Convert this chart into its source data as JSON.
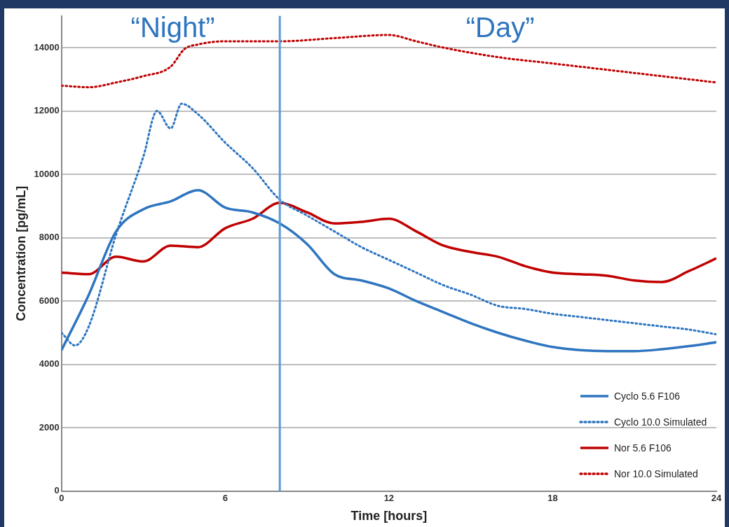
{
  "chart_data": {
    "type": "line",
    "xlabel": "Time [hours]",
    "ylabel": "Concentration [pg/mL]",
    "annotations": [
      "“Night”",
      "“Day”"
    ],
    "x": [
      0,
      1,
      2,
      3,
      4,
      5,
      6,
      7,
      8,
      9,
      10,
      11,
      12,
      13,
      14,
      15,
      16,
      17,
      18,
      19,
      20,
      21,
      22,
      23,
      24
    ],
    "series": [
      {
        "name": "Cyclo 5.6 F106",
        "color": "#2e75c0",
        "line_style": "solid",
        "values": [
          4450,
          6200,
          8200,
          8900,
          9150,
          9500,
          8950,
          8800,
          8450,
          7800,
          6850,
          6650,
          6400,
          6000,
          5650,
          5300,
          5000,
          4750,
          4550,
          4450,
          4420,
          4420,
          4480,
          4580,
          4700
        ]
      },
      {
        "name": "Cyclo 10.0 Simulated",
        "color": "#2e75c0",
        "line_style": "dotted",
        "x": [
          0,
          0.5,
          1,
          2,
          3,
          3.5,
          4,
          4.4,
          5,
          6,
          7,
          8,
          9,
          10,
          11,
          12,
          13,
          14,
          15,
          16,
          17,
          18,
          19,
          20,
          21,
          22,
          23,
          24
        ],
        "values": [
          5000,
          4600,
          5200,
          8100,
          10560,
          12000,
          11450,
          12230,
          11900,
          11000,
          10200,
          9200,
          8700,
          8200,
          7700,
          7300,
          6900,
          6500,
          6200,
          5850,
          5750,
          5600,
          5500,
          5400,
          5300,
          5200,
          5100,
          4950
        ]
      },
      {
        "name": "Nor 5.6 F106",
        "color": "#c00000",
        "line_style": "solid",
        "values": [
          6900,
          6850,
          7400,
          7250,
          7750,
          7700,
          8300,
          8600,
          9100,
          8800,
          8450,
          8500,
          8600,
          8200,
          7750,
          7550,
          7400,
          7100,
          6900,
          6850,
          6800,
          6650,
          6600,
          6950,
          7350
        ]
      },
      {
        "name": "Nor 10.0 Simulated",
        "color": "#c00000",
        "line_style": "dotted",
        "x": [
          0,
          1,
          2,
          3,
          4,
          4.5,
          5,
          6,
          8,
          10,
          12,
          13,
          14,
          16,
          18,
          20,
          22,
          24
        ],
        "values": [
          12800,
          12750,
          12900,
          13100,
          13400,
          13950,
          14100,
          14200,
          14200,
          14300,
          14400,
          14200,
          14000,
          13700,
          13500,
          13300,
          13100,
          12900
        ]
      }
    ],
    "xlim": [
      0,
      24
    ],
    "xticks": [
      0,
      6,
      12,
      18,
      24
    ],
    "ylim": [
      0,
      15000
    ],
    "yticks": [
      0,
      2000,
      4000,
      6000,
      8000,
      10000,
      12000,
      14000
    ],
    "grid": "y",
    "legend": "bottom right",
    "marker": "none",
    "ref_lines": [
      {
        "axis": "x",
        "value": 8,
        "color": "#5b9bd5"
      }
    ]
  }
}
